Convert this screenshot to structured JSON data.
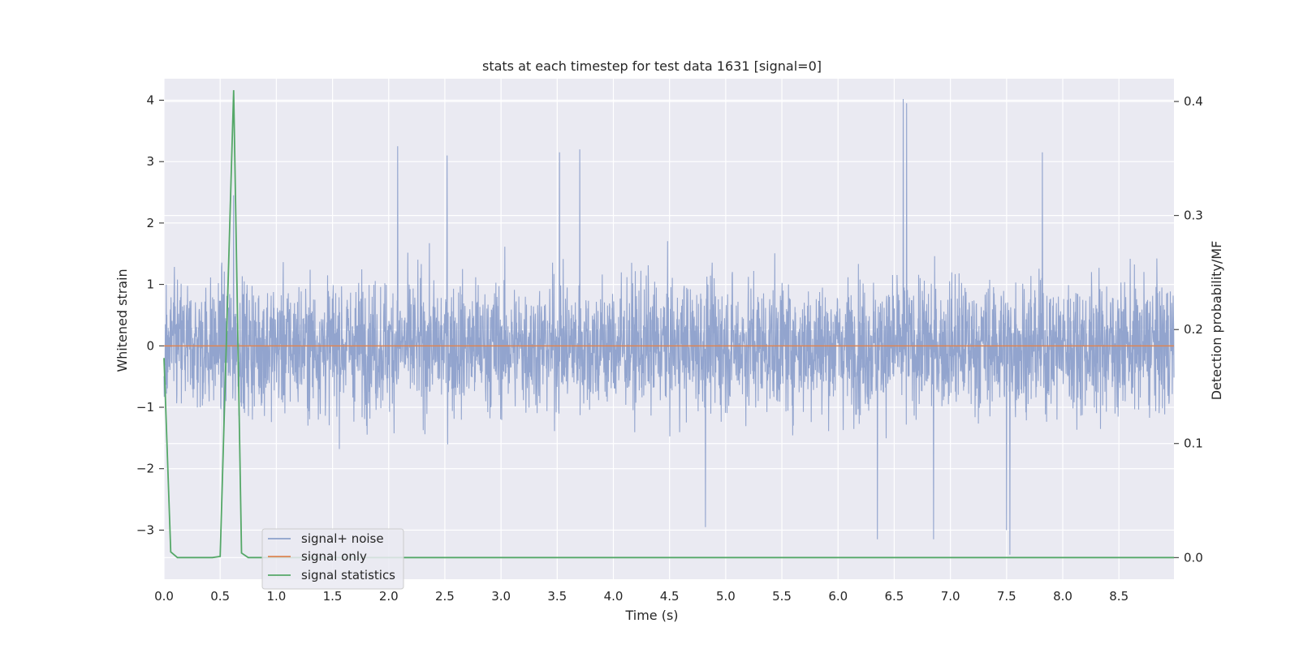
{
  "chart_data": {
    "type": "line",
    "title": "stats at each timestep for test data 1631 [signal=0]",
    "xlabel": "Time (s)",
    "ylabel_left": "Whitened strain",
    "ylabel_right": "Detection probability/MF",
    "xlim": [
      0.0,
      8.99
    ],
    "ylim_left": [
      -3.8,
      4.35
    ],
    "ylim_right": [
      -0.019,
      0.42
    ],
    "x_ticks": [
      "0.0",
      "0.5",
      "1.0",
      "1.5",
      "2.0",
      "2.5",
      "3.0",
      "3.5",
      "4.0",
      "4.5",
      "5.0",
      "5.5",
      "6.0",
      "6.5",
      "7.0",
      "7.5",
      "8.0",
      "8.5"
    ],
    "y_ticks_left": [
      "−3",
      "−2",
      "−1",
      "0",
      "1",
      "2",
      "3",
      "4"
    ],
    "y_ticks_right": [
      "0.0",
      "0.1",
      "0.2",
      "0.3",
      "0.4"
    ],
    "grid": true,
    "legend_position": "lower-left",
    "colors": {
      "signal_noise": "#8da0cb",
      "signal_only": "#dd8452",
      "signal_statistics": "#55a868",
      "background": "#eaeaf2",
      "grid": "#ffffff"
    },
    "series": [
      {
        "name": "signal+ noise",
        "axis": "left",
        "description_values": "dense whitened noise, roughly within ±2.5 with spikes",
        "peaks": [
          {
            "x": 0.62,
            "y": 2.45
          },
          {
            "x": 2.08,
            "y": 3.25
          },
          {
            "x": 2.52,
            "y": 3.1
          },
          {
            "x": 3.52,
            "y": 3.15
          },
          {
            "x": 3.7,
            "y": 3.2
          },
          {
            "x": 6.58,
            "y": 4.02
          },
          {
            "x": 6.61,
            "y": 3.95
          },
          {
            "x": 7.82,
            "y": 3.15
          }
        ],
        "troughs": [
          {
            "x": 6.35,
            "y": -3.15
          },
          {
            "x": 6.85,
            "y": -3.15
          },
          {
            "x": 7.5,
            "y": -3.0
          },
          {
            "x": 7.53,
            "y": -3.4
          },
          {
            "x": 4.82,
            "y": -2.95
          }
        ]
      },
      {
        "name": "signal only",
        "axis": "left",
        "x": [
          0.0,
          8.99
        ],
        "y": [
          0.0,
          0.0
        ]
      },
      {
        "name": "signal statistics",
        "axis": "right",
        "x": [
          0.0,
          0.06,
          0.12,
          0.18,
          0.25,
          0.31,
          0.37,
          0.43,
          0.5,
          0.62,
          0.69,
          0.75,
          0.81,
          1.0,
          2.0,
          3.0,
          4.0,
          5.0,
          6.0,
          7.0,
          8.0,
          8.99
        ],
        "y": [
          0.175,
          0.005,
          0.0,
          0.0,
          0.0,
          0.0,
          0.0,
          0.0,
          0.001,
          0.41,
          0.004,
          0.0,
          0.0,
          0.0,
          0.0,
          0.0,
          0.0,
          0.0,
          0.0,
          0.0,
          0.0,
          0.0
        ]
      }
    ]
  }
}
